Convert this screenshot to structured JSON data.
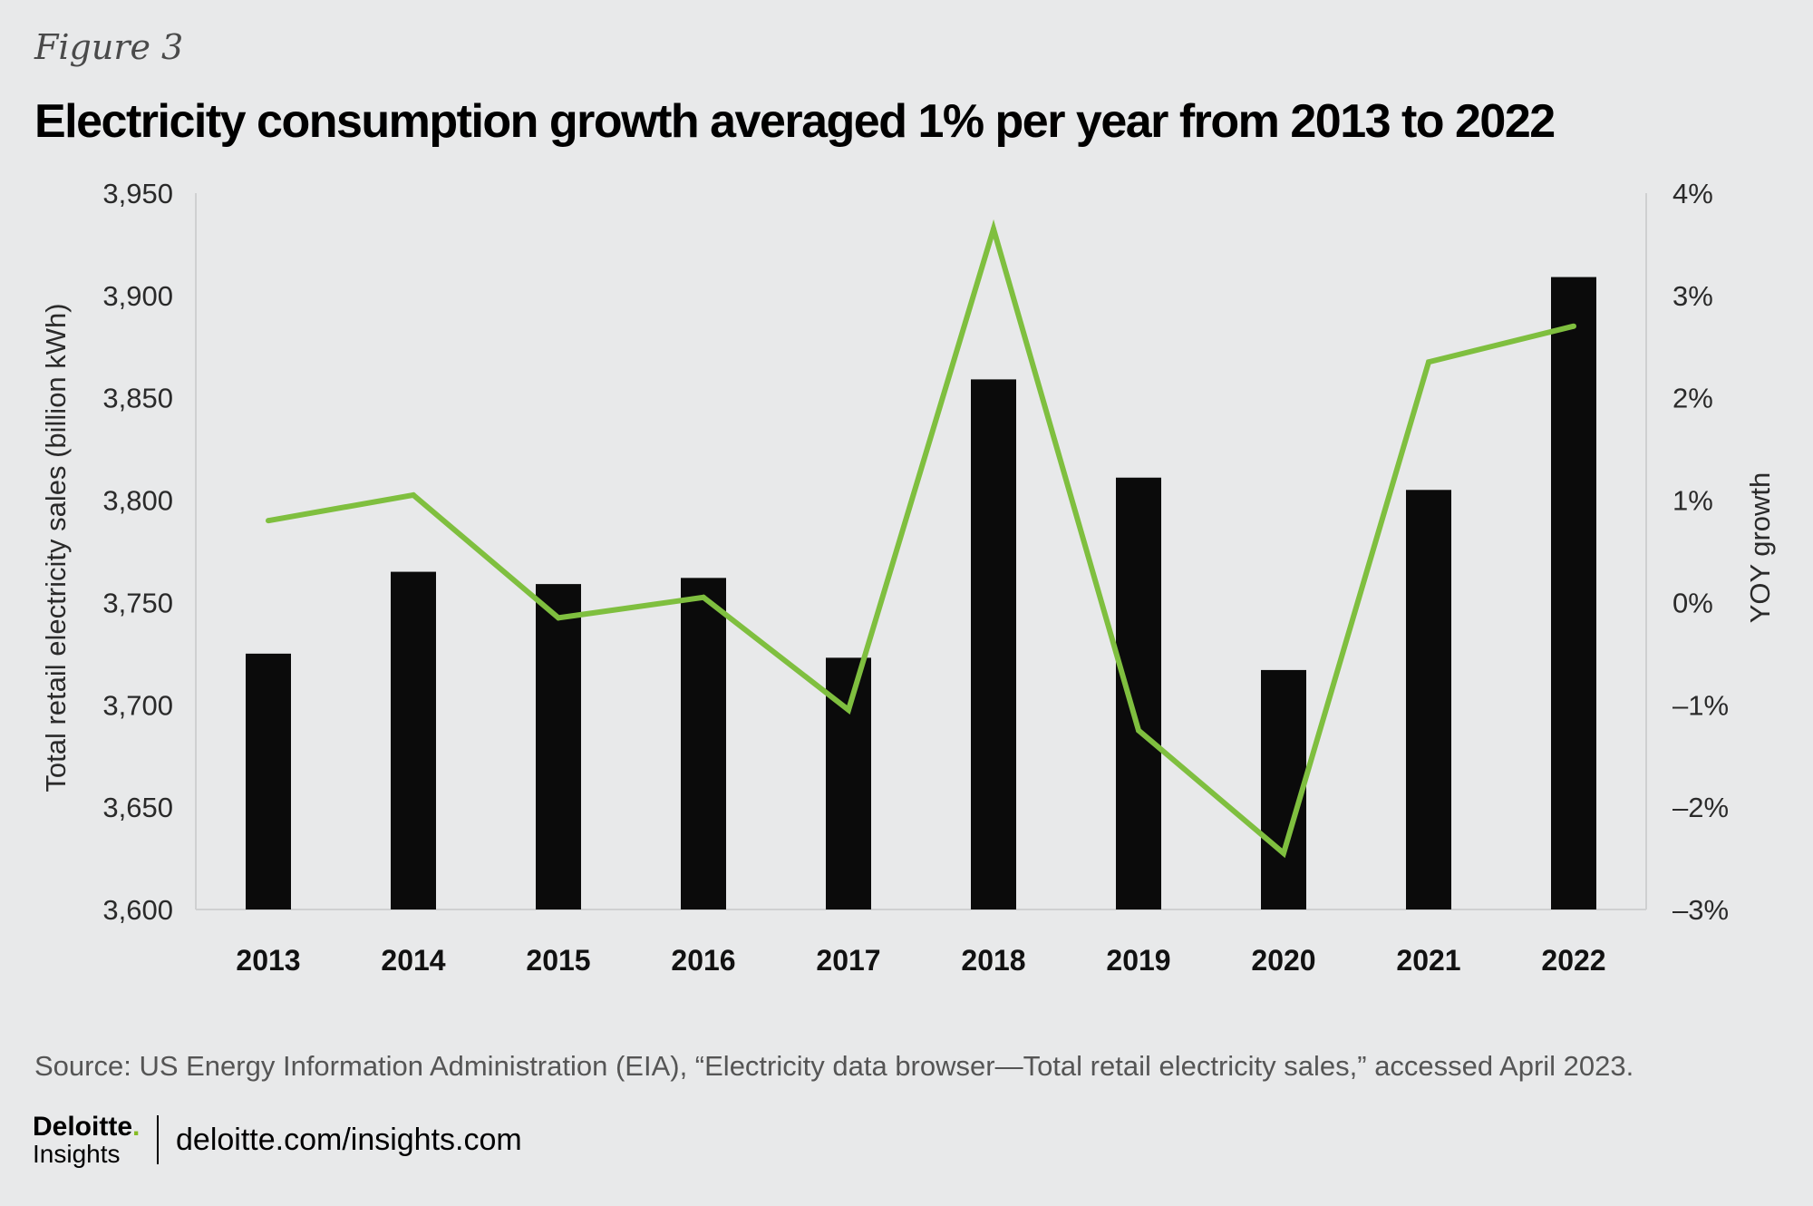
{
  "figure_label": "Figure 3",
  "source": "Source: US Energy Information Administration (EIA), “Electricity data browser—Total retail electricity sales,” accessed April 2023.",
  "footer": {
    "brand": "Deloitte",
    "brand_dot": ".",
    "brand_sub": "Insights",
    "url": "deloitte.com/insights.com"
  },
  "colors": {
    "background": "#e8e9ea",
    "bars": "#0b0b0b",
    "line": "#7fbf3f",
    "brand_accent": "#86bc25"
  },
  "chart_data": {
    "type": "bar",
    "title": "Electricity consumption growth averaged 1% per year from 2013 to 2022",
    "categories": [
      "2013",
      "2014",
      "2015",
      "2016",
      "2017",
      "2018",
      "2019",
      "2020",
      "2021",
      "2022"
    ],
    "series": [
      {
        "type": "bar",
        "axis": "left",
        "values": [
          3725,
          3765,
          3759,
          3762,
          3723,
          3859,
          3811,
          3717,
          3805,
          3909
        ]
      },
      {
        "type": "line",
        "axis": "right",
        "values": [
          0.8,
          1.05,
          -0.15,
          0.05,
          -1.05,
          3.65,
          -1.25,
          -2.45,
          2.35,
          2.7
        ]
      }
    ],
    "ylabel": "Total retail electricity sales (billion kWh)",
    "ylim": [
      3600,
      3950
    ],
    "yticks": [
      "3,950",
      "3,900",
      "3,850",
      "3,800",
      "3,750",
      "3,700",
      "3,650",
      "3,600"
    ],
    "y2label": "YOY growth",
    "y2lim": [
      -3,
      4
    ],
    "y2ticks": [
      "4%",
      "3%",
      "2%",
      "1%",
      "0%",
      "–1%",
      "–2%",
      "–3%"
    ],
    "grid": false,
    "legend": "none"
  }
}
